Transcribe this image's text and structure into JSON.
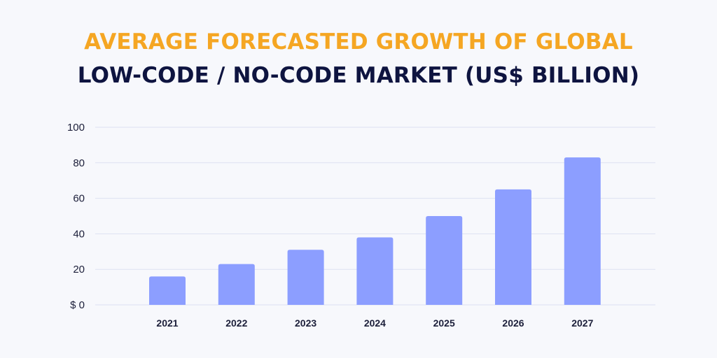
{
  "colors": {
    "title_accent": "#f5a623",
    "title_main": "#0e1440",
    "bar": "#8c9eff",
    "grid": "#dde1f2",
    "tick_text": "#1c1f3a",
    "background": "#f7f8fc"
  },
  "chart_data": {
    "type": "bar",
    "title": "AVERAGE FORECASTED GROWTH OF GLOBAL",
    "subtitle": "LOW-CODE / NO-CODE MARKET (US$ BILLION)",
    "categories": [
      "2021",
      "2022",
      "2023",
      "2024",
      "2025",
      "2026",
      "2027"
    ],
    "values": [
      16,
      23,
      31,
      38,
      50,
      65,
      83
    ],
    "xlabel": "",
    "ylabel": "",
    "ylim": [
      0,
      100
    ],
    "yticks": [
      0,
      20,
      40,
      60,
      80,
      100
    ],
    "ytick_labels": [
      "$ 0",
      "20",
      "40",
      "60",
      "80",
      "100"
    ],
    "grid": true,
    "legend": "none"
  }
}
